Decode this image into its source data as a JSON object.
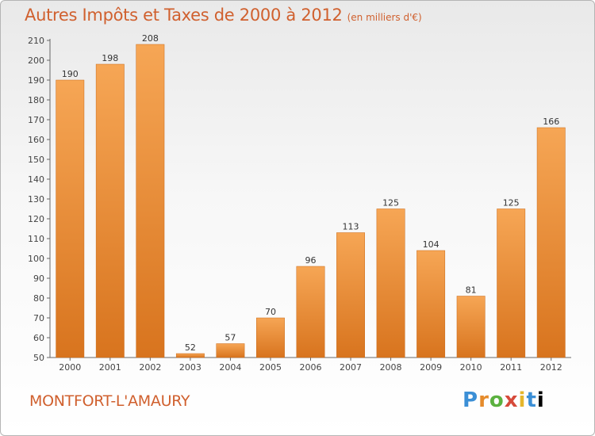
{
  "header": {
    "title": "Autres Impôts et Taxes de 2000 à 2012",
    "subtitle": "(en milliers d'€)"
  },
  "footer": {
    "city": "MONTFORT-L'AMAURY",
    "brand_letters": [
      "P",
      "r",
      "o",
      "x",
      "i",
      "t",
      "i"
    ]
  },
  "colors": {
    "bar_top": "#f6a655",
    "bar_bottom": "#d8741e",
    "title": "#d0602e",
    "axis": "#666666"
  },
  "chart_data": {
    "type": "bar",
    "title": "Autres Impôts et Taxes de 2000 à 2012",
    "subtitle": "(en milliers d'€)",
    "categories": [
      "2000",
      "2001",
      "2002",
      "2003",
      "2004",
      "2005",
      "2006",
      "2007",
      "2008",
      "2009",
      "2010",
      "2011",
      "2012"
    ],
    "values": [
      190,
      198,
      208,
      52,
      57,
      70,
      96,
      113,
      125,
      104,
      81,
      125,
      166
    ],
    "ylim": [
      50,
      210
    ],
    "yticks": [
      50,
      60,
      70,
      80,
      90,
      100,
      110,
      120,
      130,
      140,
      150,
      160,
      170,
      180,
      190,
      200,
      210
    ],
    "grid": false,
    "data_labels": true
  }
}
